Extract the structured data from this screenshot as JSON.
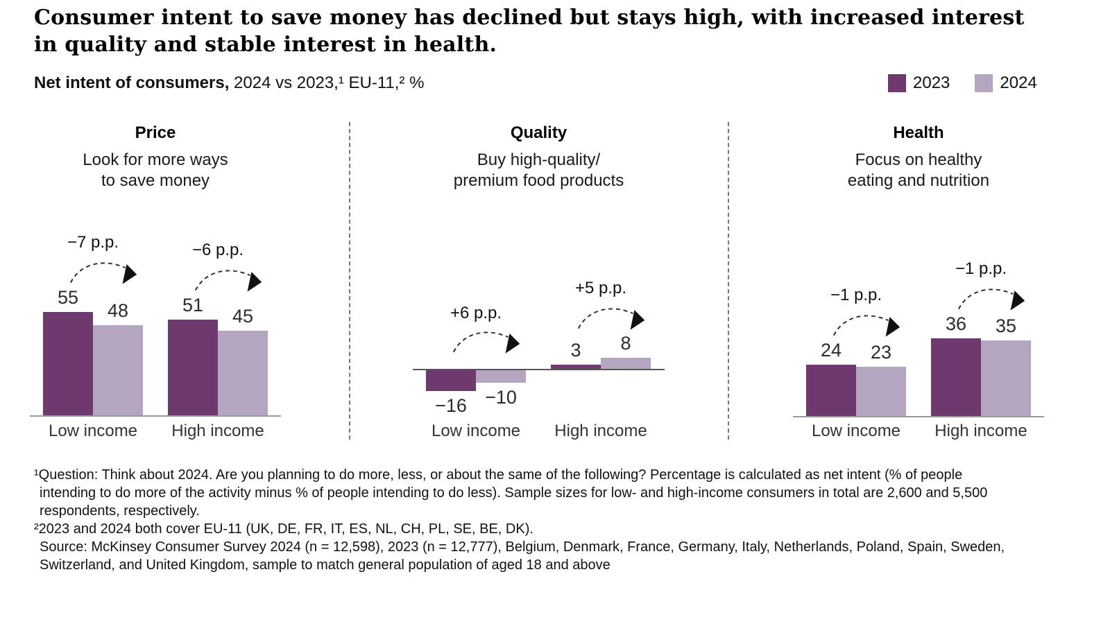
{
  "title": "Consumer intent to save money has declined but stays high, with increased interest in quality and stable interest in health.",
  "subtitle": {
    "bold": "Net intent of consumers,",
    "rest": " 2024 vs 2023,¹ EU-11,² %"
  },
  "colors": {
    "series_2023": "#6e3a6d",
    "series_2024": "#b4a5c1",
    "axis_gray": "#9a9a9a",
    "divider": "#777777"
  },
  "legend": {
    "items": [
      {
        "label": "2023"
      },
      {
        "label": "2024"
      }
    ]
  },
  "chart_data": {
    "type": "bar",
    "unit": "net intent, percentage points (%)",
    "series_names": [
      "2023",
      "2024"
    ],
    "legend_position": "top-right",
    "panels": [
      {
        "title": "Price",
        "description": "Look for more ways\nto save money",
        "categories": [
          "Low income",
          "High income"
        ],
        "groups": [
          {
            "label": "Low income",
            "values": [
              55,
              48
            ],
            "value_labels": [
              "55",
              "48"
            ],
            "change_label": "−7 p.p."
          },
          {
            "label": "High income",
            "values": [
              51,
              45
            ],
            "value_labels": [
              "51",
              "45"
            ],
            "change_label": "−6 p.p."
          }
        ]
      },
      {
        "title": "Quality",
        "description": "Buy high-quality/\npremium food products",
        "categories": [
          "Low income",
          "High income"
        ],
        "groups": [
          {
            "label": "Low income",
            "values": [
              -16,
              -10
            ],
            "value_labels": [
              "−16",
              "−10"
            ],
            "change_label": "+6 p.p."
          },
          {
            "label": "High income",
            "values": [
              3,
              8
            ],
            "value_labels": [
              "3",
              "8"
            ],
            "change_label": "+5 p.p."
          }
        ]
      },
      {
        "title": "Health",
        "description": "Focus on healthy\neating and nutrition",
        "categories": [
          "Low income",
          "High income"
        ],
        "groups": [
          {
            "label": "Low income",
            "values": [
              24,
              23
            ],
            "value_labels": [
              "24",
              "23"
            ],
            "change_label": "−1 p.p."
          },
          {
            "label": "High income",
            "values": [
              36,
              35
            ],
            "value_labels": [
              "36",
              "35"
            ],
            "change_label": "−1 p.p."
          }
        ]
      }
    ]
  },
  "footnotes": [
    "¹Question: Think about 2024. Are you planning to do more, less, or about the same of the following? Percentage is calculated as net intent (% of people intending to do more of the activity minus % of people intending to do less). Sample sizes for low- and high-income consumers in total are 2,600 and 5,500 respondents, respectively.",
    "²2023 and 2024 both cover EU-11 (UK, DE, FR, IT, ES, NL, CH, PL, SE, BE, DK).",
    "Source: McKinsey Consumer Survey 2024 (n = 12,598), 2023 (n = 12,777), Belgium, Denmark, France, Germany, Italy, Netherlands, Poland, Spain, Sweden, Switzerland, and United Kingdom, sample to match general population of aged 18 and above"
  ]
}
